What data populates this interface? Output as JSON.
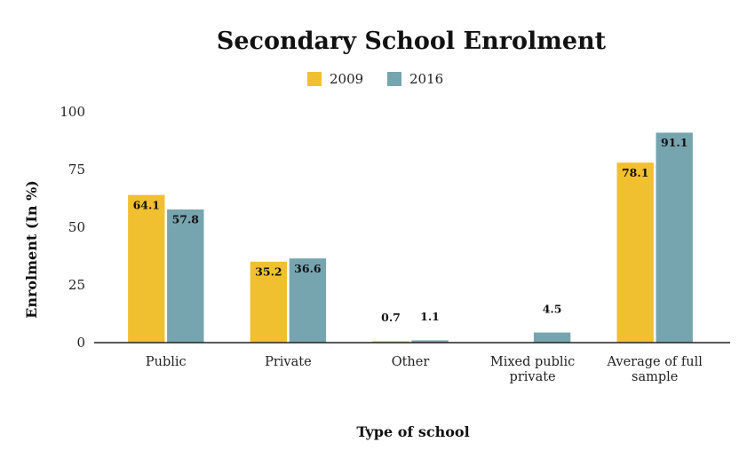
{
  "chart_data": {
    "type": "bar",
    "title": "Secondary School Enrolment",
    "xlabel": "Type of school",
    "ylabel": "Enrolment (In %)",
    "categories": [
      [
        "Public"
      ],
      [
        "Private"
      ],
      [
        "Other"
      ],
      [
        "Mixed public",
        "private"
      ],
      [
        "Average of full",
        "sample"
      ]
    ],
    "series": [
      {
        "name": "2009",
        "color": "#F0C030",
        "values": [
          64.1,
          35.2,
          0.7,
          null,
          78.1
        ],
        "labels": [
          "64.1",
          "35.2",
          "0.7",
          "",
          "78.1"
        ]
      },
      {
        "name": "2016",
        "color": "#76A5AF",
        "values": [
          57.8,
          36.6,
          1.1,
          4.5,
          91.1
        ],
        "labels": [
          "57.8",
          "36.6",
          "1.1",
          "4.5",
          "91.1"
        ]
      }
    ],
    "ylim": [
      0,
      100
    ],
    "yticks": [
      0,
      25,
      50,
      75,
      100
    ],
    "grid": false,
    "legend": "top-center"
  }
}
